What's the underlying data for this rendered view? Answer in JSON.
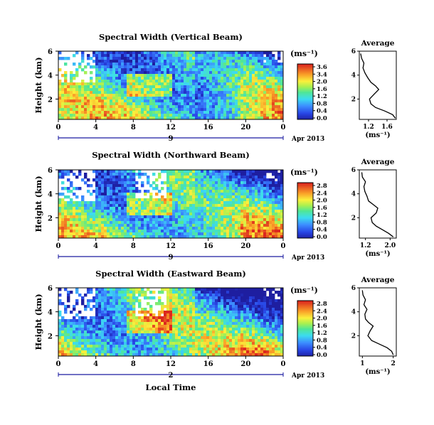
{
  "figure": {
    "xlabel_bottom": "Local Time",
    "date_label": "Apr 2013",
    "unit_label": "(ms⁻¹)"
  },
  "chart_data": [
    {
      "type": "heatmap",
      "title": "Spectral Width (Vertical Beam)",
      "ylabel": "Height (km)",
      "x_ticks": [
        "0",
        "4",
        "8",
        "12",
        "16",
        "20",
        "0"
      ],
      "xlim": [
        0,
        24
      ],
      "y_ticks": [
        "6",
        "4",
        "2"
      ],
      "ylim": [
        0.3,
        6
      ],
      "day_label": "9",
      "colorbar": {
        "label": "(ms⁻¹)",
        "ticks": [
          "3.6",
          "3.4",
          "2.0",
          "1.6",
          "1.2",
          "0.8",
          "0.4",
          "0.0"
        ],
        "range": [
          0.0,
          3.6
        ]
      },
      "average_profile": {
        "title": "Average",
        "xlabel": "(ms⁻¹)",
        "x_ticks": [
          "1.2",
          "1.6"
        ],
        "xlim": [
          1.0,
          1.8
        ],
        "y_ticks": [
          "6",
          "4",
          "2"
        ],
        "ylim": [
          0.3,
          6
        ],
        "height": [
          0.4,
          0.7,
          1.0,
          1.3,
          1.6,
          2.0,
          2.4,
          2.8,
          3.1,
          3.4,
          3.8,
          4.2,
          4.6,
          5.0,
          5.4,
          5.8
        ],
        "width": [
          1.78,
          1.72,
          1.55,
          1.35,
          1.25,
          1.22,
          1.32,
          1.42,
          1.35,
          1.25,
          1.18,
          1.12,
          1.08,
          1.1,
          1.05,
          1.03
        ]
      }
    },
    {
      "type": "heatmap",
      "title": "Spectral Width (Northward Beam)",
      "ylabel": "Height (km)",
      "x_ticks": [
        "0",
        "4",
        "8",
        "12",
        "16",
        "20",
        "0"
      ],
      "xlim": [
        0,
        24
      ],
      "y_ticks": [
        "6",
        "4",
        "2"
      ],
      "ylim": [
        0.3,
        6
      ],
      "day_label": "9",
      "colorbar": {
        "label": "(ms⁻¹)",
        "ticks": [
          "2.8",
          "2.4",
          "2.0",
          "1.6",
          "1.2",
          "0.8",
          "0.4",
          "0.0"
        ],
        "range": [
          0.0,
          2.8
        ]
      },
      "average_profile": {
        "title": "Average",
        "xlabel": "(ms⁻¹)",
        "x_ticks": [
          "1.2",
          "2.0"
        ],
        "xlim": [
          1.0,
          2.2
        ],
        "y_ticks": [
          "6",
          "4",
          "2"
        ],
        "ylim": [
          0.3,
          6
        ],
        "height": [
          0.4,
          0.7,
          1.0,
          1.3,
          1.6,
          2.0,
          2.4,
          2.8,
          3.1,
          3.4,
          3.8,
          4.2,
          4.6,
          5.0,
          5.4,
          5.8
        ],
        "width": [
          2.1,
          1.95,
          1.75,
          1.55,
          1.42,
          1.38,
          1.55,
          1.6,
          1.45,
          1.3,
          1.25,
          1.18,
          1.15,
          1.2,
          1.1,
          1.08
        ]
      }
    },
    {
      "type": "heatmap",
      "title": "Spectral Width (Eastward Beam)",
      "ylabel": "Height (km)",
      "x_ticks": [
        "0",
        "4",
        "8",
        "12",
        "16",
        "20",
        "0"
      ],
      "xlim": [
        0,
        24
      ],
      "y_ticks": [
        "6",
        "4",
        "2"
      ],
      "ylim": [
        0.3,
        6
      ],
      "day_label": "2",
      "colorbar": {
        "label": "(ms⁻¹)",
        "ticks": [
          "2.8",
          "2.4",
          "2.0",
          "1.6",
          "1.2",
          "0.8",
          "0.4",
          "0.0"
        ],
        "range": [
          0.0,
          2.8
        ]
      },
      "average_profile": {
        "title": "Average",
        "xlabel": "(ms⁻¹)",
        "x_ticks": [
          "1",
          "2"
        ],
        "xlim": [
          0.9,
          2.1
        ],
        "y_ticks": [
          "6",
          "4",
          "2"
        ],
        "ylim": [
          0.3,
          6
        ],
        "height": [
          0.4,
          0.7,
          1.0,
          1.3,
          1.6,
          2.0,
          2.4,
          2.8,
          3.1,
          3.4,
          3.8,
          4.2,
          4.6,
          5.0,
          5.4,
          5.8
        ],
        "width": [
          2.0,
          1.95,
          1.8,
          1.55,
          1.3,
          1.18,
          1.25,
          1.35,
          1.2,
          1.1,
          1.08,
          1.15,
          1.05,
          1.1,
          1.02,
          1.0
        ]
      }
    }
  ]
}
